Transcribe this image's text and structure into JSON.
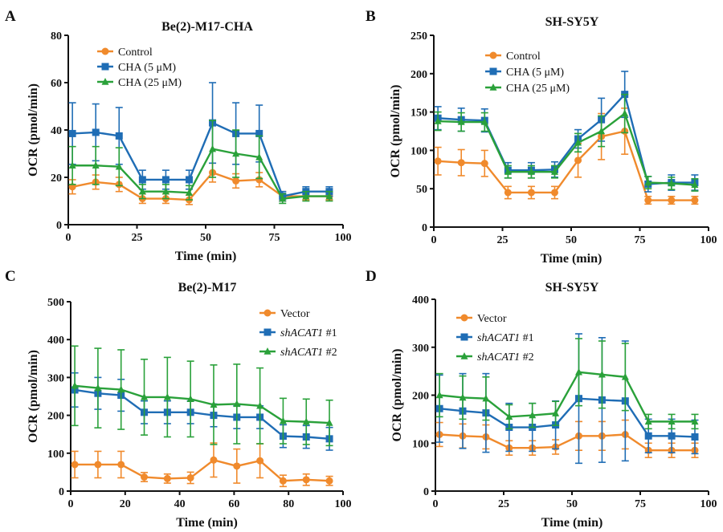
{
  "figure": {
    "panels": [
      {
        "letter": "A",
        "title": "Be(2)-M17-CHA"
      },
      {
        "letter": "B",
        "title": "SH-SY5Y"
      },
      {
        "letter": "C",
        "title": "Be(2)-M17"
      },
      {
        "letter": "D",
        "title": "SH-SY5Y"
      }
    ]
  },
  "chart_data": [
    {
      "panel": "A",
      "type": "line",
      "title": "Be(2)-M17-CHA",
      "xlabel": "Time (min)",
      "ylabel": "OCR (pmol/min)",
      "xlim": [
        0,
        100
      ],
      "ylim": [
        0,
        80
      ],
      "xticks": [
        0,
        25,
        50,
        75,
        100
      ],
      "yticks": [
        0,
        20,
        40,
        60,
        80
      ],
      "grid": false,
      "legend": "top-left",
      "x": [
        1.5,
        10,
        18.5,
        27,
        35.5,
        44,
        52.5,
        61,
        69.5,
        78,
        86.5,
        95
      ],
      "series": [
        {
          "name": "Control",
          "color": "#f08a2c",
          "marker": "circle",
          "values": [
            16,
            18,
            17,
            11,
            11,
            10.5,
            22,
            18.5,
            19,
            12,
            12,
            12
          ],
          "errors": [
            3,
            3,
            3,
            2,
            2,
            2,
            4,
            3,
            3,
            2,
            1.5,
            1.5
          ]
        },
        {
          "name": "CHA (5 μM)",
          "color": "#1f6db5",
          "marker": "square",
          "values": [
            38.5,
            39,
            37.5,
            19,
            19,
            19,
            43,
            38.5,
            38.5,
            12,
            14,
            14
          ],
          "errors": [
            13,
            12,
            12,
            4,
            4,
            4,
            17,
            13,
            12,
            2,
            2,
            2
          ]
        },
        {
          "name": "CHA (25 μM)",
          "color": "#2aa13a",
          "marker": "triangle",
          "values": [
            25,
            25,
            24.5,
            14,
            14,
            13.5,
            32,
            30,
            28.5,
            11,
            12,
            12
          ],
          "errors": [
            8,
            8,
            8,
            3,
            3,
            3,
            12,
            10,
            9,
            2,
            2,
            2
          ]
        }
      ]
    },
    {
      "panel": "B",
      "type": "line",
      "title": "SH-SY5Y",
      "xlabel": "Time (min)",
      "ylabel": "OCR (pmol/min)",
      "xlim": [
        0,
        100
      ],
      "ylim": [
        0,
        250
      ],
      "xticks": [
        0,
        25,
        50,
        75,
        100
      ],
      "yticks": [
        0,
        50,
        100,
        150,
        200,
        250
      ],
      "grid": false,
      "legend": "top-right",
      "x": [
        1.5,
        10,
        18.5,
        27,
        35.5,
        44,
        52.5,
        61,
        69.5,
        78,
        86.5,
        95
      ],
      "series": [
        {
          "name": "Control",
          "color": "#f08a2c",
          "marker": "circle",
          "values": [
            86,
            84,
            83,
            45,
            45,
            45,
            87,
            118,
            125,
            35,
            35,
            35
          ],
          "errors": [
            18,
            17,
            17,
            8,
            8,
            8,
            22,
            30,
            30,
            5,
            5,
            5
          ]
        },
        {
          "name": "CHA (5 μM)",
          "color": "#1f6db5",
          "marker": "square",
          "values": [
            142,
            140,
            139,
            74,
            74,
            75,
            115,
            140,
            173,
            56,
            58,
            58
          ],
          "errors": [
            15,
            15,
            15,
            10,
            10,
            10,
            12,
            28,
            30,
            10,
            10,
            10
          ]
        },
        {
          "name": "CHA (25 μM)",
          "color": "#2aa13a",
          "marker": "triangle",
          "values": [
            138,
            137,
            137,
            72,
            72,
            72,
            110,
            125,
            148,
            58,
            57,
            55
          ],
          "errors": [
            12,
            12,
            12,
            8,
            8,
            8,
            12,
            20,
            25,
            8,
            8,
            8
          ]
        }
      ]
    },
    {
      "panel": "C",
      "type": "line",
      "title": "Be(2)-M17",
      "xlabel": "Time  (min)",
      "ylabel": "OCR (pmol/min)",
      "xlim": [
        0,
        100
      ],
      "ylim": [
        0,
        500
      ],
      "xticks": [
        0,
        20,
        40,
        60,
        80,
        100
      ],
      "yticks": [
        0,
        100,
        200,
        300,
        400,
        500
      ],
      "grid": false,
      "legend": "top-right",
      "x": [
        1.5,
        10,
        18.5,
        27,
        35.5,
        44,
        52.5,
        61,
        69.5,
        78,
        86.5,
        95
      ],
      "series": [
        {
          "name": "Vector",
          "color": "#f08a2c",
          "marker": "circle",
          "values": [
            70,
            70,
            70,
            37,
            33,
            35,
            82,
            66,
            80,
            27,
            30,
            27
          ],
          "errors": [
            35,
            35,
            35,
            12,
            12,
            15,
            45,
            45,
            45,
            15,
            15,
            12
          ]
        },
        {
          "name": "shACAT1 #1",
          "italic": "shACAT1",
          "suffix": " #1",
          "color": "#1f6db5",
          "marker": "square",
          "values": [
            267,
            258,
            253,
            208,
            208,
            208,
            200,
            195,
            195,
            145,
            143,
            138
          ],
          "errors": [
            45,
            42,
            42,
            30,
            30,
            30,
            30,
            30,
            30,
            30,
            30,
            30
          ]
        },
        {
          "name": "shACAT1 #2",
          "italic": "shACAT1",
          "suffix": " #2",
          "color": "#2aa13a",
          "marker": "triangle",
          "values": [
            278,
            272,
            268,
            248,
            248,
            243,
            228,
            230,
            225,
            185,
            183,
            180
          ],
          "errors": [
            105,
            105,
            105,
            100,
            105,
            100,
            105,
            105,
            100,
            60,
            60,
            60
          ]
        }
      ]
    },
    {
      "panel": "D",
      "type": "line",
      "title": "SH-SY5Y",
      "xlabel": "Time  (min)",
      "ylabel": "OCR (pmol/min)",
      "xlim": [
        0,
        100
      ],
      "ylim": [
        0,
        400
      ],
      "xticks": [
        0,
        25,
        50,
        75,
        100
      ],
      "yticks": [
        0,
        100,
        200,
        300,
        400
      ],
      "grid": false,
      "legend": "top-left",
      "x": [
        1.5,
        10,
        18.5,
        27,
        35.5,
        44,
        52.5,
        61,
        69.5,
        78,
        86.5,
        95
      ],
      "series": [
        {
          "name": "Vector",
          "color": "#f08a2c",
          "marker": "circle",
          "values": [
            118,
            115,
            113,
            90,
            90,
            92,
            115,
            115,
            118,
            85,
            85,
            85
          ],
          "errors": [
            25,
            25,
            25,
            15,
            15,
            15,
            30,
            30,
            30,
            15,
            15,
            15
          ]
        },
        {
          "name": "shACAT1 #1",
          "italic": "shACAT1",
          "suffix": " #1",
          "color": "#1f6db5",
          "marker": "square",
          "values": [
            172,
            167,
            163,
            133,
            133,
            138,
            193,
            190,
            188,
            115,
            115,
            113
          ],
          "errors": [
            70,
            78,
            82,
            50,
            50,
            50,
            135,
            130,
            125,
            35,
            35,
            35
          ]
        },
        {
          "name": "shACAT1 #2",
          "italic": "shACAT1",
          "suffix": " #2",
          "color": "#2aa13a",
          "marker": "triangle",
          "values": [
            200,
            195,
            193,
            155,
            158,
            162,
            248,
            243,
            238,
            145,
            145,
            145
          ],
          "errors": [
            45,
            45,
            45,
            25,
            25,
            25,
            70,
            70,
            70,
            15,
            15,
            15
          ]
        }
      ]
    }
  ]
}
